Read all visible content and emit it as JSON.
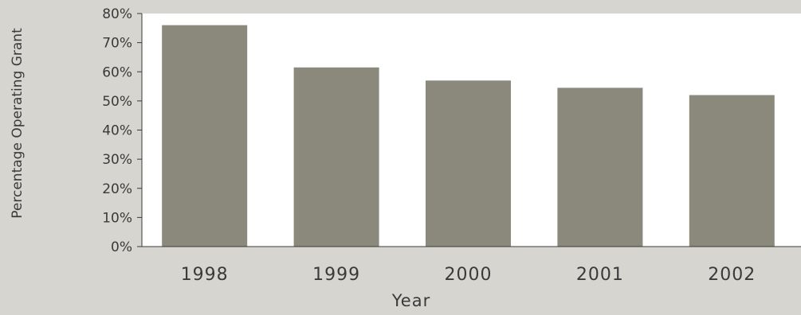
{
  "chart_data": {
    "type": "bar",
    "title": "",
    "xlabel": "Year",
    "ylabel": "Percentage Operating Grant",
    "categories": [
      "1998",
      "1999",
      "2000",
      "2001",
      "2002"
    ],
    "values": [
      76,
      61.5,
      57,
      54.5,
      52
    ],
    "ylim": [
      0,
      80
    ],
    "ytick_values": [
      0,
      10,
      20,
      30,
      40,
      50,
      60,
      70,
      80
    ],
    "ytick_labels": [
      "0%",
      "10%",
      "20%",
      "30%",
      "40%",
      "50%",
      "60%",
      "70%",
      "80%"
    ],
    "grid": false,
    "legend": "none",
    "colors": {
      "background": "#d6d5d0",
      "plot_area": "#ffffff",
      "bar": "#8b897b",
      "axis": "#3a3a3a"
    }
  }
}
